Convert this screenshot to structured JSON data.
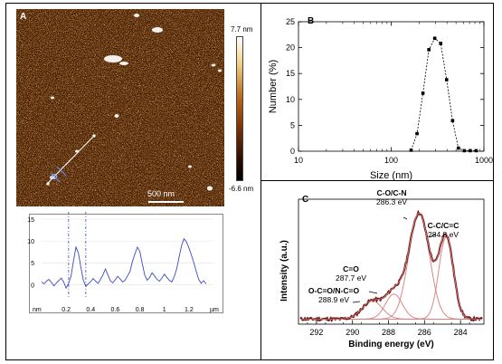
{
  "panels": {
    "a": {
      "letter": "A",
      "colorbar": {
        "max_label": "7.7 nm",
        "min_label": "-6.6 nm",
        "top_color": "#ffffff",
        "mid_color": "#8a3d09",
        "bottom_color": "#000000"
      },
      "scalebar_label": "500 nm"
    },
    "b": {
      "letter": "B"
    },
    "c": {
      "letter": "C",
      "annotations": [
        {
          "line1": "C-O/C-N",
          "line2": "286.3 eV"
        },
        {
          "line1": "C-C/C=C",
          "line2": "284.8 eV"
        },
        {
          "line1": "C=O",
          "line2": "287.7 eV"
        },
        {
          "line1": "O-C=O/N-C=O",
          "line2": "288.9 eV"
        }
      ]
    }
  },
  "chart_data": [
    {
      "id": "height-profile",
      "type": "line",
      "title": "",
      "xlabel": "µm",
      "ylabel": "nm",
      "xlim": [
        0,
        1.4
      ],
      "ylim": [
        -2,
        15
      ],
      "x_ticks": [
        {
          "v": 0.2,
          "label": "0.2"
        },
        {
          "v": 0.4,
          "label": "0.4"
        },
        {
          "v": 0.6,
          "label": "0.6"
        },
        {
          "v": 0.8,
          "label": "0.8"
        },
        {
          "v": 1.0,
          "label": "1"
        },
        {
          "v": 1.2,
          "label": "1.2"
        }
      ],
      "y_ticks": [
        {
          "v": 0,
          "label": "0"
        },
        {
          "v": 5,
          "label": "5"
        },
        {
          "v": 10,
          "label": "10"
        },
        {
          "v": 15,
          "label": "15"
        }
      ],
      "cursors": [
        0.22,
        0.36
      ],
      "series": [
        {
          "color": "#3a4bc0",
          "x": [
            0.0,
            0.02,
            0.04,
            0.06,
            0.08,
            0.1,
            0.12,
            0.14,
            0.16,
            0.18,
            0.2,
            0.22,
            0.24,
            0.26,
            0.28,
            0.3,
            0.32,
            0.34,
            0.36,
            0.38,
            0.4,
            0.42,
            0.44,
            0.46,
            0.48,
            0.5,
            0.52,
            0.54,
            0.56,
            0.58,
            0.6,
            0.62,
            0.64,
            0.66,
            0.68,
            0.7,
            0.72,
            0.74,
            0.76,
            0.78,
            0.8,
            0.82,
            0.84,
            0.86,
            0.88,
            0.9,
            0.92,
            0.94,
            0.96,
            0.98,
            1.0,
            1.02,
            1.04,
            1.06,
            1.08,
            1.1,
            1.12,
            1.14,
            1.16,
            1.18,
            1.2,
            1.22,
            1.24,
            1.26,
            1.28,
            1.3,
            1.32,
            1.34
          ],
          "y": [
            0.6,
            0.2,
            0.8,
            1.2,
            0.5,
            -0.3,
            0.4,
            0.9,
            1.5,
            0.6,
            -0.8,
            0.3,
            2.0,
            5.5,
            8.6,
            7.2,
            4.0,
            1.0,
            -0.4,
            0.2,
            0.7,
            1.4,
            0.8,
            0.3,
            1.2,
            2.3,
            3.6,
            2.2,
            0.9,
            0.4,
            1.1,
            1.9,
            1.3,
            0.6,
            1.0,
            2.0,
            3.0,
            5.3,
            7.0,
            8.6,
            7.6,
            4.8,
            2.2,
            1.0,
            1.6,
            2.7,
            2.0,
            1.2,
            0.8,
            1.5,
            2.4,
            1.7,
            1.0,
            0.6,
            1.8,
            3.6,
            6.3,
            8.9,
            10.5,
            9.8,
            8.4,
            6.8,
            5.0,
            3.0,
            1.2,
            0.3,
            0.9,
            0.2
          ]
        }
      ]
    },
    {
      "id": "size-distribution",
      "type": "scatter",
      "title": "",
      "xlabel": "Size (nm)",
      "ylabel": "Number (%)",
      "xscale": "log",
      "xlim": [
        10,
        1000
      ],
      "ylim": [
        0,
        25
      ],
      "x_ticks": [
        {
          "v": 10,
          "label": "10"
        },
        {
          "v": 100,
          "label": "100"
        },
        {
          "v": 1000,
          "label": "1000"
        }
      ],
      "y_ticks": [
        {
          "v": 0,
          "label": "0"
        },
        {
          "v": 5,
          "label": "5"
        },
        {
          "v": 10,
          "label": "10"
        },
        {
          "v": 15,
          "label": "15"
        },
        {
          "v": 20,
          "label": "20"
        },
        {
          "v": 25,
          "label": "25"
        }
      ],
      "series": [
        {
          "color": "#000000",
          "x": [
            164,
            190,
            220,
            255,
            295,
            342,
            396,
            459,
            531,
            615,
            712,
            825
          ],
          "y": [
            0.2,
            3.4,
            11.2,
            19.6,
            21.8,
            20.8,
            13.8,
            5.9,
            0.6,
            0.1,
            0.1,
            0.1
          ]
        }
      ]
    },
    {
      "id": "xps-c1s",
      "type": "line",
      "title": "",
      "xlabel": "Binding energy (eV)",
      "ylabel": "Intensity (a.u.)",
      "xlim": [
        293,
        282.7
      ],
      "ylim": [
        0,
        1.1
      ],
      "x_reversed": true,
      "x_ticks": [
        {
          "v": 292,
          "label": "292"
        },
        {
          "v": 290,
          "label": "290"
        },
        {
          "v": 288,
          "label": "288"
        },
        {
          "v": 286,
          "label": "286"
        },
        {
          "v": 284,
          "label": "284"
        }
      ],
      "series": [
        {
          "role": "raw",
          "color": "#6b1a1a",
          "peak_centers_eV": [
            288.9,
            287.7,
            286.3,
            284.8
          ],
          "peak_heights": [
            0.16,
            0.22,
            0.93,
            0.72
          ],
          "peak_fwhm_eV": [
            1.3,
            1.1,
            1.35,
            0.95
          ],
          "baseline": 0.045
        },
        {
          "role": "fit-envelope",
          "color": "#d97a7a"
        },
        {
          "role": "components",
          "color": "#d97a7a"
        }
      ]
    }
  ]
}
